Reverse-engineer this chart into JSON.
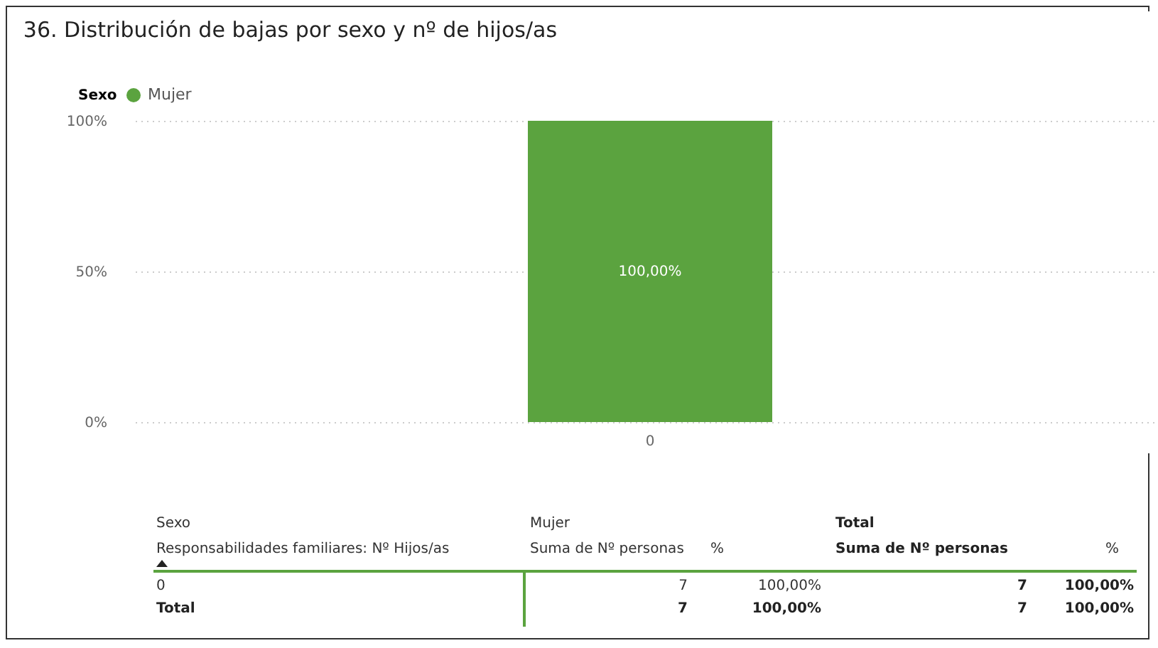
{
  "chart_data": {
    "type": "bar",
    "title": "36. Distribución de bajas por sexo y nº de hijos/as",
    "legend_title": "Sexo",
    "legend": "top left",
    "categories": [
      "0"
    ],
    "series": [
      {
        "name": "Mujer",
        "color": "#5ba33f",
        "values": [
          100
        ],
        "value_labels": [
          "100,00%"
        ]
      }
    ],
    "ylim": [
      0,
      100
    ],
    "yticks": [
      {
        "value": 0,
        "label": "0%"
      },
      {
        "value": 50,
        "label": "50%"
      },
      {
        "value": 100,
        "label": "100%"
      }
    ],
    "grid": "y",
    "annotations": [
      "Sexo",
      "Mujer",
      "Total",
      "Responsabilidades familiares: Nº Hijos/as",
      "Suma de Nº personas",
      "%",
      "Suma de Nº personas",
      "%",
      "0",
      "7",
      "100,00%",
      "7",
      "100,00%",
      "Total",
      "7",
      "100,00%",
      "7",
      "100,00%"
    ]
  }
}
